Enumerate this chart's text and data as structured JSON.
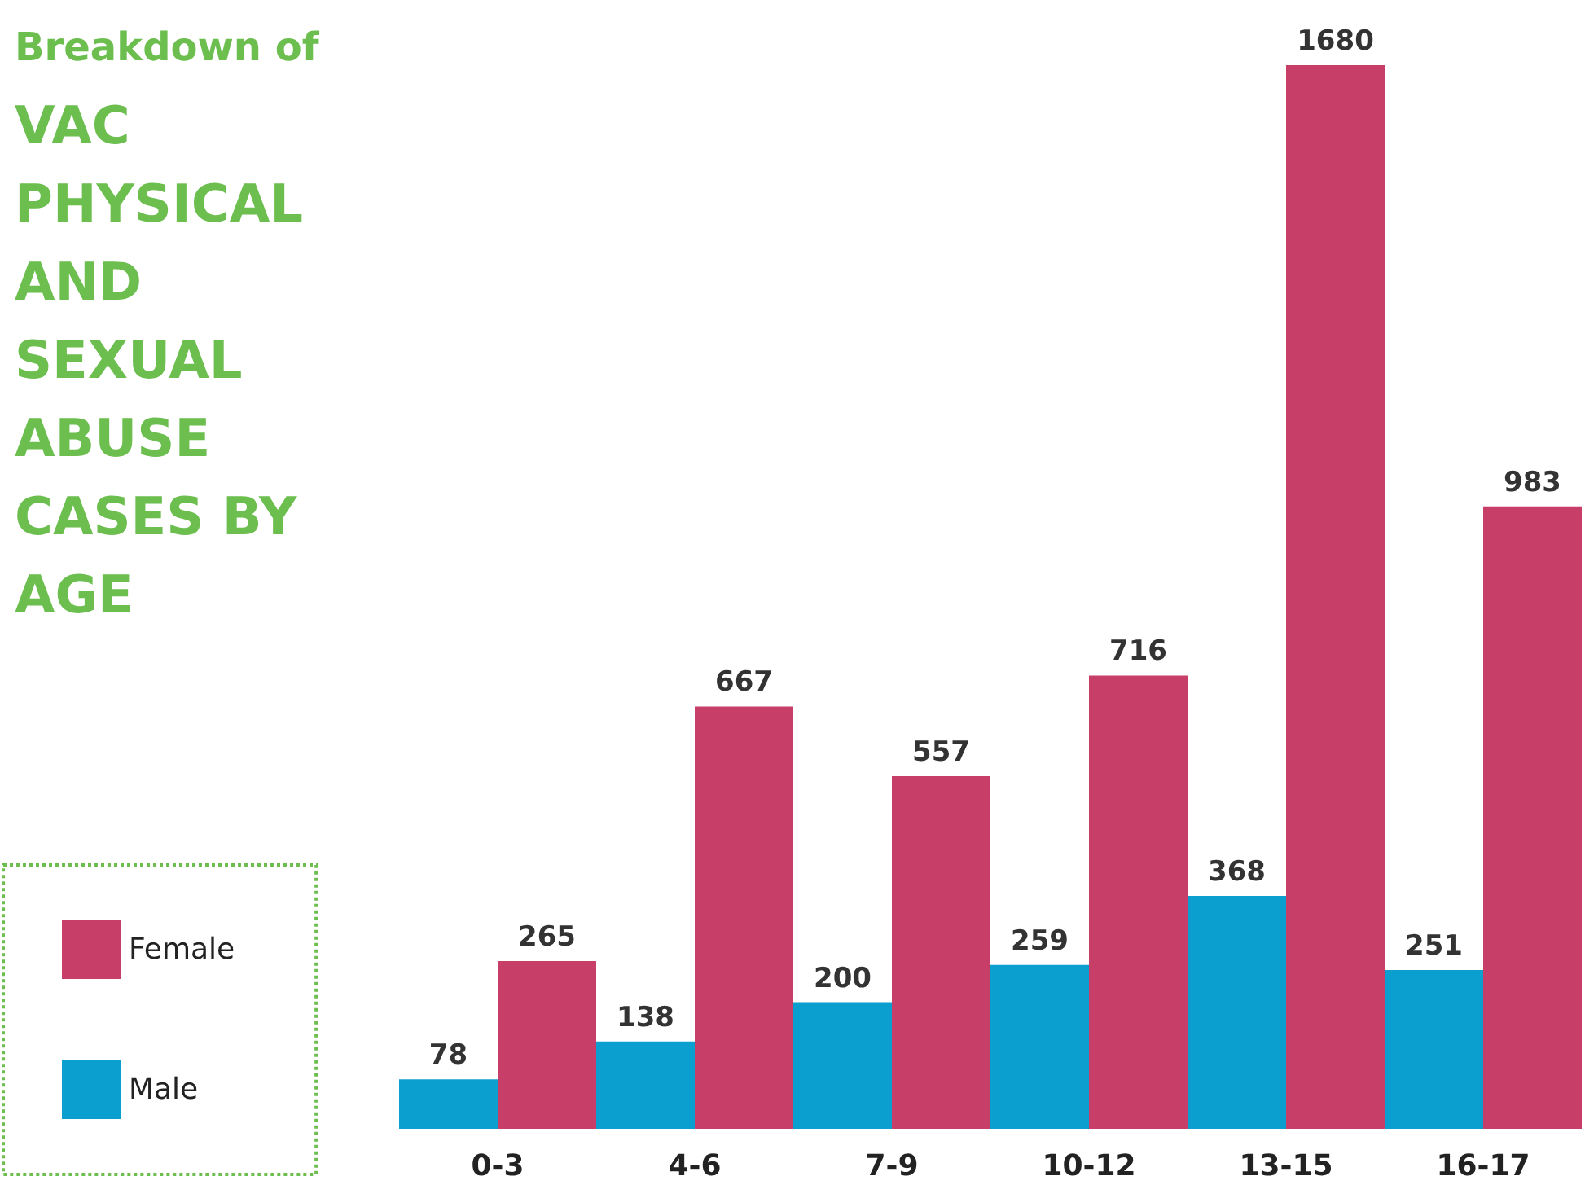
{
  "chart_data": {
    "type": "bar",
    "title": "Breakdown of VAC PHYSICAL AND SEXUAL ABUSE CASES BY AGE",
    "categories": [
      "0-3",
      "4-6",
      "7-9",
      "10-12",
      "13-15",
      "16-17"
    ],
    "series": [
      {
        "name": "Male",
        "color": "#0a9fcf",
        "values": [
          78,
          138,
          200,
          259,
          368,
          251
        ]
      },
      {
        "name": "Female",
        "color": "#c73e68",
        "values": [
          265,
          667,
          557,
          716,
          1680,
          983
        ]
      }
    ],
    "data_labels": true,
    "legend": "bottom left",
    "grid": false
  }
}
